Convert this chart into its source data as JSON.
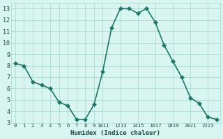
{
  "x": [
    0,
    1,
    2,
    3,
    4,
    5,
    6,
    7,
    8,
    9,
    10,
    11,
    12,
    13,
    14,
    15,
    16,
    17,
    18,
    19,
    20,
    21,
    22,
    23
  ],
  "y": [
    8.2,
    8.0,
    6.6,
    6.3,
    6.0,
    4.8,
    4.5,
    3.3,
    3.3,
    4.6,
    7.5,
    11.3,
    13.0,
    13.0,
    12.6,
    13.0,
    11.8,
    9.8,
    8.4,
    7.0,
    5.2,
    4.7,
    3.5,
    3.3
  ],
  "xlabel": "Humidex (Indice chaleur)",
  "line_color": "#1a7a6a",
  "marker_size": 3,
  "bg_color": "#d8f5f0",
  "grid_color": "#a0d8d0",
  "xlim": [
    -0.5,
    23.4
  ],
  "ylim": [
    3,
    13.5
  ],
  "yticks": [
    3,
    4,
    5,
    6,
    7,
    8,
    9,
    10,
    11,
    12,
    13
  ],
  "font_color": "#1a4a4a",
  "linewidth": 1.2
}
